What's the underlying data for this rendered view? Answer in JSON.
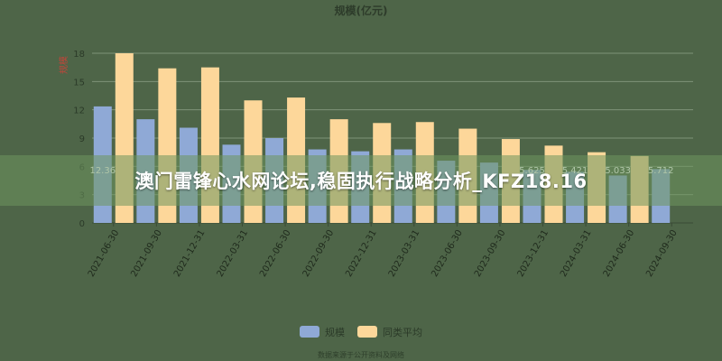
{
  "banner": {
    "text": "澳门雷锋心水网论坛,稳固执行战略分析_KFZ18.16"
  },
  "footer": {
    "note": "数据来源于公开资料及网络"
  },
  "chart_data": {
    "type": "bar",
    "title": "规模(亿元)",
    "ylabel": "规模",
    "ylim": [
      0,
      18
    ],
    "yticks": [
      0,
      3,
      6,
      9,
      12,
      15,
      18
    ],
    "grid": true,
    "legend_position": "bottom",
    "categories": [
      "2021-06-30",
      "2021-09-30",
      "2021-12-31",
      "2022-03-31",
      "2022-06-30",
      "2022-09-30",
      "2022-12-31",
      "2023-03-31",
      "2023-06-30",
      "2023-09-30",
      "2023-12-31",
      "2024-03-31",
      "2024-06-30",
      "2024-09-30"
    ],
    "series": [
      {
        "name": "规模",
        "color": "#8fa9d6",
        "values": [
          12.36,
          11.0,
          10.1,
          8.3,
          9.0,
          7.8,
          7.6,
          7.8,
          6.6,
          6.4,
          5.625,
          5.421,
          5.033,
          5.712
        ],
        "labels": [
          "12.36",
          "",
          "",
          "",
          "",
          "",
          "",
          "",
          "",
          "",
          "5.625",
          "5.421",
          "5.033",
          "5.712"
        ]
      },
      {
        "name": "同类平均",
        "color": "#fdd79a",
        "values": [
          18.0,
          16.4,
          16.5,
          13.0,
          13.3,
          11.0,
          10.6,
          10.7,
          10.0,
          8.9,
          8.2,
          7.5,
          7.1,
          null
        ]
      }
    ]
  }
}
